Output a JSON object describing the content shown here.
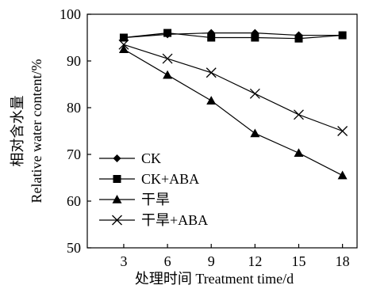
{
  "chart_data": {
    "type": "line",
    "xlabel": "处理时间 Treatment time/d",
    "ylabel_cn": "相对含水量",
    "ylabel_en": "Relative water content/%",
    "x": [
      3,
      6,
      9,
      12,
      15,
      18
    ],
    "xlim": [
      0.5,
      19
    ],
    "ylim": [
      50,
      100
    ],
    "yticks": [
      50,
      60,
      70,
      80,
      90,
      100
    ],
    "xticks": [
      3,
      6,
      9,
      12,
      15,
      18
    ],
    "grid": false,
    "legend_position": "bottom-left",
    "series": [
      {
        "name": "CK",
        "marker": "diamond",
        "values": [
          95.0,
          95.7,
          96.0,
          96.0,
          95.5,
          95.5
        ]
      },
      {
        "name": "CK+ABA",
        "marker": "square",
        "values": [
          95.0,
          96.0,
          95.0,
          95.0,
          94.8,
          95.5
        ]
      },
      {
        "name": "干旱",
        "marker": "triangle",
        "values": [
          92.5,
          87.0,
          81.5,
          74.5,
          70.3,
          65.5
        ]
      },
      {
        "name": "干旱+ABA",
        "marker": "cross",
        "values": [
          93.5,
          90.5,
          87.5,
          83.0,
          78.5,
          75.0
        ]
      }
    ]
  }
}
